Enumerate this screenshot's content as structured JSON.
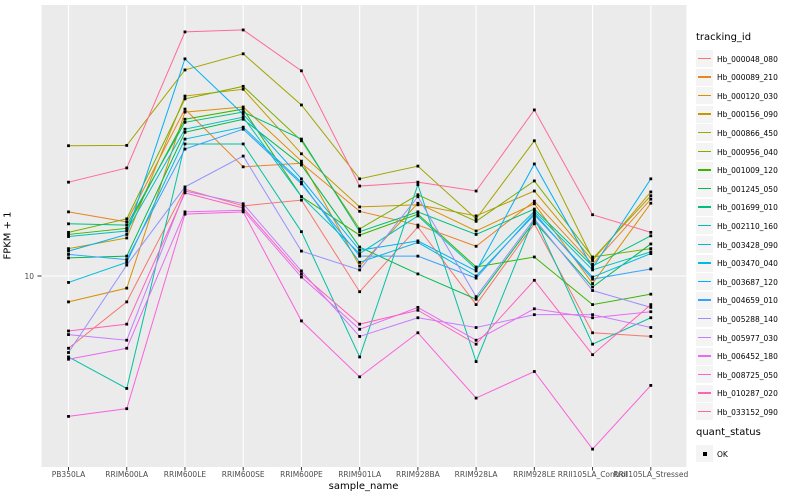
{
  "figure": {
    "y_axis": {
      "title": "FPKM + 1",
      "tick": "10"
    },
    "x_axis": {
      "title": "sample_name"
    },
    "legend": {
      "tracking_title": "tracking_id",
      "quant_title": "quant_status",
      "quant_ok_label": "OK"
    },
    "colors": {
      "panel_bg": "#EBEBEB",
      "grid": "#FFFFFF",
      "tick_mark": "#333333",
      "tick_text": "#4D4D4D",
      "marker": "#000000"
    }
  },
  "chart_data": {
    "type": "line",
    "title": "",
    "xlabel": "sample_name",
    "ylabel": "FPKM + 1",
    "y_scale": "log10",
    "y_ticks": [
      10
    ],
    "ylim": [
      1.5,
      120
    ],
    "grid": "major",
    "legend_position": "right",
    "marker": "black-square",
    "categories": [
      "PB350LA",
      "RRIM600LA",
      "RRIM600LE",
      "RRIM600SE",
      "RRIM600PE",
      "RRIM901LA",
      "RRIM928BA",
      "RRIM928LA",
      "RRIM928LE",
      "RRII105LA_Control",
      "RRII105LA_Stressed"
    ],
    "series": [
      {
        "name": "Hb_000048_080",
        "color": "#F8766D",
        "values": [
          5.0,
          7.8,
          23.0,
          19.6,
          20.7,
          8.6,
          16.0,
          7.6,
          16.5,
          5.8,
          5.6
        ]
      },
      {
        "name": "Hb_000089_210",
        "color": "#E88526",
        "values": [
          18.5,
          16.8,
          49.6,
          28.5,
          29.5,
          18.6,
          16.3,
          13.3,
          20.5,
          11.2,
          20.9
        ]
      },
      {
        "name": "Hb_000120_030",
        "color": "#D89000",
        "values": [
          7.8,
          8.9,
          48.2,
          50.6,
          30.1,
          11.0,
          20.1,
          15.4,
          20.0,
          9.3,
          20.1
        ]
      },
      {
        "name": "Hb_000156_090",
        "color": "#C49A00",
        "values": [
          13.0,
          14.4,
          56.2,
          60.0,
          32.3,
          19.4,
          19.8,
          17.8,
          22.6,
          11.6,
          22.4
        ]
      },
      {
        "name": "Hb_000866_450",
        "color": "#A3A500",
        "values": [
          34.9,
          35.0,
          72.2,
          84.3,
          51.6,
          25.4,
          28.7,
          17.3,
          36.6,
          11.8,
          21.6
        ]
      },
      {
        "name": "Hb_000956_040",
        "color": "#7CAE00",
        "values": [
          15.2,
          17.3,
          54.7,
          61.7,
          36.6,
          15.7,
          21.8,
          16.9,
          24.9,
          12.0,
          13.0
        ]
      },
      {
        "name": "Hb_001009_120",
        "color": "#39B600",
        "values": [
          14.9,
          15.8,
          45.0,
          49.6,
          21.4,
          14.8,
          18.1,
          10.9,
          12.0,
          7.6,
          8.4
        ]
      },
      {
        "name": "Hb_001245_050",
        "color": "#00BB4E",
        "values": [
          11.9,
          12.1,
          39.7,
          45.0,
          29.0,
          13.2,
          10.2,
          8.0,
          16.9,
          9.0,
          13.6
        ]
      },
      {
        "name": "Hb_001699_010",
        "color": "#00BF7D",
        "values": [
          16.5,
          16.3,
          43.7,
          48.2,
          37.2,
          15.3,
          18.5,
          14.9,
          19.0,
          11.0,
          14.7
        ]
      },
      {
        "name": "Hb_002110_160",
        "color": "#00C1A3",
        "values": [
          4.6,
          3.4,
          35.5,
          35.5,
          15.3,
          4.6,
          24.0,
          4.4,
          17.6,
          5.2,
          6.7
        ]
      },
      {
        "name": "Hb_003428_090",
        "color": "#00BFC4",
        "values": [
          14.6,
          15.4,
          40.9,
          45.9,
          21.4,
          12.4,
          17.8,
          10.7,
          18.6,
          10.6,
          12.6
        ]
      },
      {
        "name": "Hb_003470_040",
        "color": "#00BAE0",
        "values": [
          9.4,
          11.4,
          37.2,
          41.7,
          24.6,
          11.4,
          13.8,
          10.0,
          18.0,
          9.9,
          12.4
        ]
      },
      {
        "name": "Hb_003687_120",
        "color": "#00B0F6",
        "values": [
          12.7,
          14.9,
          80.3,
          47.2,
          25.4,
          12.8,
          14.0,
          10.5,
          29.3,
          10.8,
          25.4
        ]
      },
      {
        "name": "Hb_004659_010",
        "color": "#35A2FF",
        "values": [
          12.3,
          11.7,
          33.8,
          40.9,
          24.2,
          12.1,
          12.1,
          9.8,
          18.3,
          9.7,
          10.7
        ]
      },
      {
        "name": "Hb_005288_140",
        "color": "#9590FF",
        "values": [
          4.8,
          11.1,
          23.5,
          31.6,
          12.7,
          10.6,
          21.4,
          8.2,
          17.3,
          8.7,
          7.4
        ]
      },
      {
        "name": "Hb_005977_030",
        "color": "#C77CFF",
        "values": [
          5.7,
          5.4,
          22.6,
          20.0,
          10.5,
          5.6,
          6.7,
          6.1,
          6.9,
          6.9,
          6.1
        ]
      },
      {
        "name": "Hb_006452_180",
        "color": "#E76BF3",
        "values": [
          4.5,
          5.0,
          18.5,
          18.8,
          9.9,
          6.0,
          7.4,
          5.4,
          7.3,
          6.7,
          7.1
        ]
      },
      {
        "name": "Hb_008725_050",
        "color": "#FA62DB",
        "values": [
          2.6,
          2.8,
          18.1,
          18.5,
          6.5,
          3.8,
          5.8,
          3.1,
          4.0,
          1.9,
          3.5
        ]
      },
      {
        "name": "Hb_010287_020",
        "color": "#FF62BC",
        "values": [
          5.9,
          6.3,
          22.2,
          19.2,
          10.2,
          6.3,
          7.2,
          5.2,
          9.6,
          4.7,
          7.6
        ]
      },
      {
        "name": "Hb_033152_090",
        "color": "#FF6A98",
        "values": [
          24.6,
          28.2,
          104.0,
          106.0,
          71.6,
          23.7,
          24.6,
          22.6,
          49.2,
          18.0,
          15.2
        ]
      }
    ]
  }
}
